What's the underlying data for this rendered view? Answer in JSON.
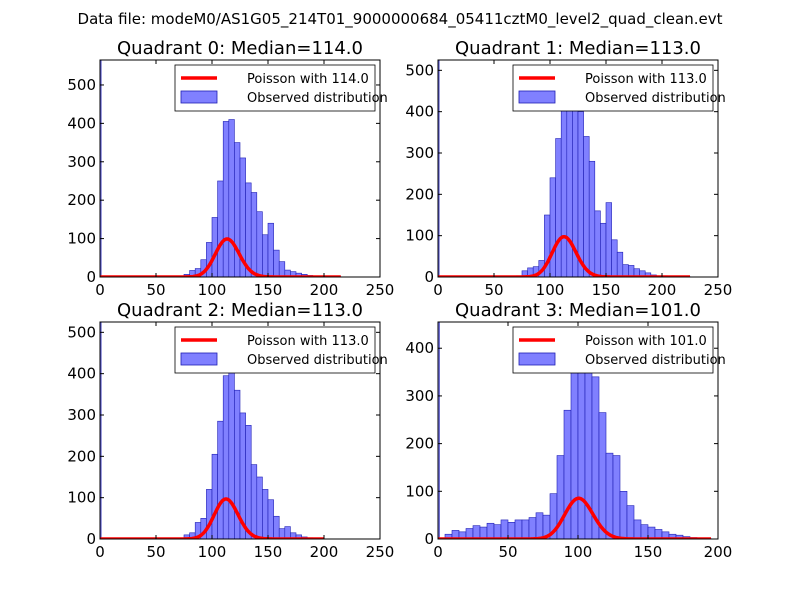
{
  "suptitle": "Data file: modeM0/AS1G05_214T01_9000000684_05411cztM0_level2_quad_clean.evt",
  "colors": {
    "poisson": "#ff0000",
    "bars": "#8080ff",
    "bar_edge": "#1f1fb4",
    "axes": "#000000"
  },
  "chart_data": [
    {
      "type": "bar",
      "title": "Quadrant 0: Median=114.0",
      "xlim": [
        0,
        250
      ],
      "ylim": [
        0,
        565
      ],
      "xticks": [
        0,
        50,
        100,
        150,
        200,
        250
      ],
      "yticks": [
        0,
        100,
        200,
        300,
        400,
        500
      ],
      "bin_width": 5,
      "legend": [
        "Poisson with 114.0",
        "Observed distribution"
      ],
      "mean": 114,
      "pois_scale": 2650,
      "pois_range": [
        0,
        215
      ],
      "outlier": {
        "x": 0,
        "value": 565
      },
      "bins": [
        [
          70,
          3
        ],
        [
          75,
          7
        ],
        [
          80,
          17
        ],
        [
          85,
          22
        ],
        [
          90,
          45
        ],
        [
          95,
          90
        ],
        [
          100,
          155
        ],
        [
          105,
          250
        ],
        [
          110,
          405
        ],
        [
          115,
          410
        ],
        [
          120,
          350
        ],
        [
          125,
          310
        ],
        [
          130,
          245
        ],
        [
          135,
          220
        ],
        [
          140,
          170
        ],
        [
          145,
          110
        ],
        [
          150,
          140
        ],
        [
          155,
          70
        ],
        [
          160,
          40
        ],
        [
          165,
          18
        ],
        [
          170,
          14
        ],
        [
          175,
          10
        ],
        [
          180,
          7
        ],
        [
          185,
          4
        ],
        [
          190,
          3
        ],
        [
          195,
          2
        ],
        [
          200,
          3
        ],
        [
          205,
          1
        ],
        [
          210,
          1
        ]
      ]
    },
    {
      "type": "bar",
      "title": "Quadrant 1: Median=113.0",
      "xlim": [
        0,
        250
      ],
      "ylim": [
        0,
        525
      ],
      "xticks": [
        0,
        50,
        100,
        150,
        200,
        250
      ],
      "yticks": [
        0,
        100,
        200,
        300,
        400,
        500
      ],
      "bin_width": 5,
      "legend": [
        "Poisson with 113.0",
        "Observed distribution"
      ],
      "mean": 113,
      "pois_scale": 2600,
      "pois_range": [
        0,
        225
      ],
      "outlier": {
        "x": 0,
        "value": 525
      },
      "bins": [
        [
          70,
          3
        ],
        [
          75,
          15
        ],
        [
          80,
          22
        ],
        [
          85,
          25
        ],
        [
          90,
          40
        ],
        [
          95,
          150
        ],
        [
          100,
          240
        ],
        [
          105,
          335
        ],
        [
          110,
          485
        ],
        [
          115,
          415
        ],
        [
          120,
          420
        ],
        [
          125,
          400
        ],
        [
          130,
          340
        ],
        [
          135,
          280
        ],
        [
          140,
          160
        ],
        [
          145,
          130
        ],
        [
          150,
          180
        ],
        [
          155,
          90
        ],
        [
          160,
          60
        ],
        [
          165,
          30
        ],
        [
          170,
          28
        ],
        [
          175,
          20
        ],
        [
          180,
          15
        ],
        [
          185,
          10
        ],
        [
          190,
          5
        ],
        [
          195,
          3
        ],
        [
          200,
          3
        ],
        [
          205,
          1
        ],
        [
          210,
          1
        ],
        [
          215,
          1
        ],
        [
          220,
          1
        ]
      ]
    },
    {
      "type": "bar",
      "title": "Quadrant 2: Median=113.0",
      "xlim": [
        0,
        250
      ],
      "ylim": [
        0,
        525
      ],
      "xticks": [
        0,
        50,
        100,
        150,
        200,
        250
      ],
      "yticks": [
        0,
        100,
        200,
        300,
        400,
        500
      ],
      "bin_width": 5,
      "legend": [
        "Poisson with 113.0",
        "Observed distribution"
      ],
      "mean": 113,
      "pois_scale": 2580,
      "pois_range": [
        0,
        200
      ],
      "outlier": {
        "x": 0,
        "value": 525
      },
      "bins": [
        [
          75,
          10
        ],
        [
          80,
          15
        ],
        [
          85,
          40
        ],
        [
          90,
          50
        ],
        [
          95,
          120
        ],
        [
          100,
          205
        ],
        [
          105,
          285
        ],
        [
          110,
          395
        ],
        [
          115,
          415
        ],
        [
          120,
          360
        ],
        [
          125,
          305
        ],
        [
          130,
          275
        ],
        [
          135,
          180
        ],
        [
          140,
          150
        ],
        [
          145,
          120
        ],
        [
          150,
          95
        ],
        [
          155,
          55
        ],
        [
          160,
          25
        ],
        [
          165,
          30
        ],
        [
          170,
          15
        ],
        [
          175,
          10
        ],
        [
          180,
          5
        ],
        [
          185,
          3
        ],
        [
          190,
          2
        ],
        [
          195,
          1
        ]
      ]
    },
    {
      "type": "bar",
      "title": "Quadrant 3: Median=101.0",
      "xlim": [
        0,
        200
      ],
      "ylim": [
        0,
        455
      ],
      "xticks": [
        0,
        50,
        100,
        150,
        200
      ],
      "yticks": [
        0,
        100,
        200,
        300,
        400
      ],
      "bin_width": 5,
      "legend": [
        "Poisson with 101.0",
        "Observed distribution"
      ],
      "mean": 101,
      "pois_scale": 2150,
      "pois_range": [
        0,
        195
      ],
      "outlier": {
        "x": 0,
        "value": 455
      },
      "bins": [
        [
          5,
          10
        ],
        [
          10,
          18
        ],
        [
          15,
          15
        ],
        [
          20,
          22
        ],
        [
          25,
          28
        ],
        [
          30,
          25
        ],
        [
          35,
          33
        ],
        [
          40,
          30
        ],
        [
          45,
          40
        ],
        [
          50,
          35
        ],
        [
          55,
          40
        ],
        [
          60,
          40
        ],
        [
          65,
          45
        ],
        [
          70,
          55
        ],
        [
          75,
          50
        ],
        [
          80,
          95
        ],
        [
          85,
          175
        ],
        [
          90,
          270
        ],
        [
          95,
          350
        ],
        [
          100,
          420
        ],
        [
          105,
          380
        ],
        [
          110,
          340
        ],
        [
          115,
          265
        ],
        [
          120,
          180
        ],
        [
          125,
          175
        ],
        [
          130,
          100
        ],
        [
          135,
          70
        ],
        [
          140,
          40
        ],
        [
          145,
          30
        ],
        [
          150,
          25
        ],
        [
          155,
          20
        ],
        [
          160,
          15
        ],
        [
          165,
          10
        ],
        [
          170,
          8
        ],
        [
          175,
          5
        ],
        [
          180,
          3
        ],
        [
          185,
          2
        ],
        [
          190,
          1
        ]
      ]
    }
  ]
}
